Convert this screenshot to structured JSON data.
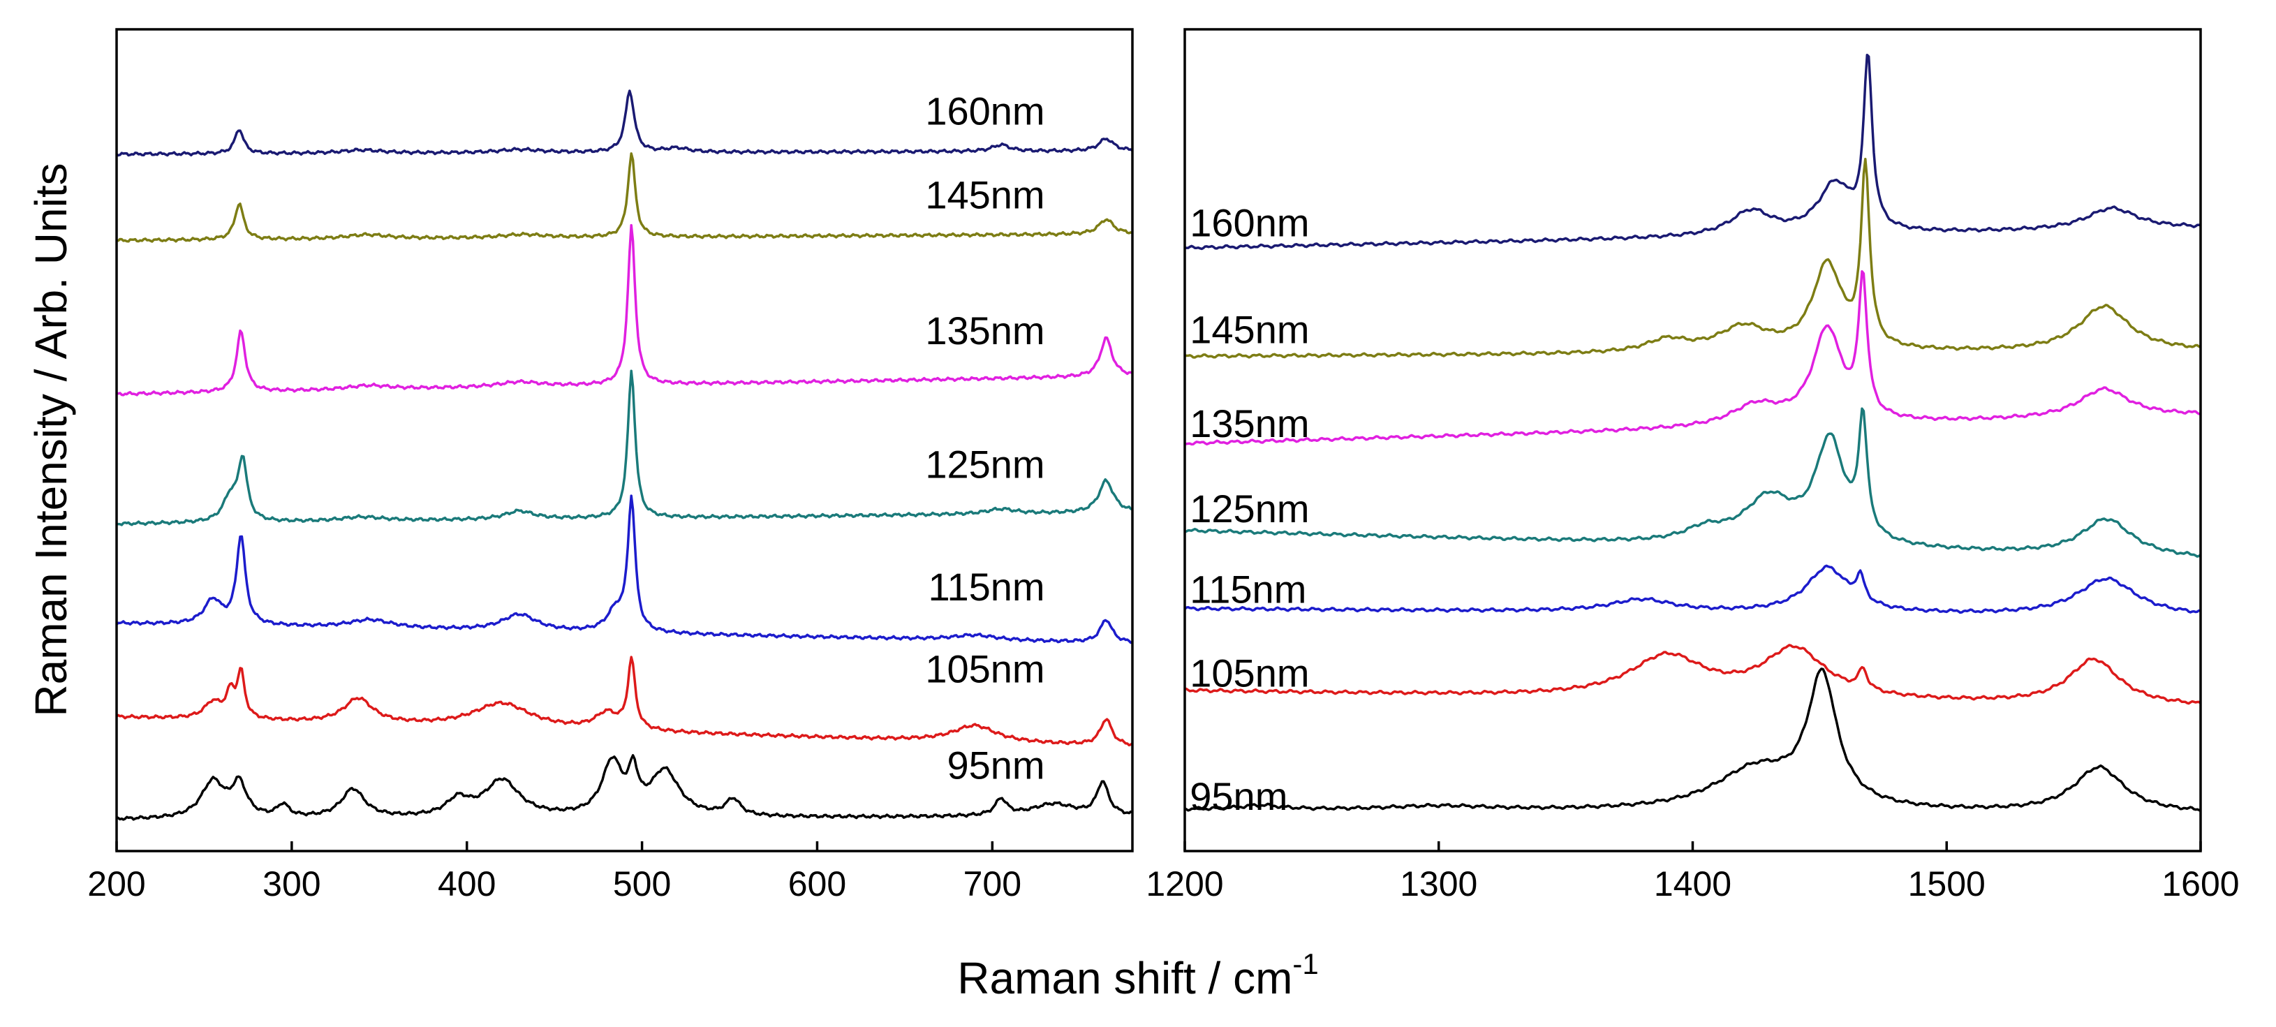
{
  "chart_data": {
    "type": "line",
    "ylabel": "Raman Intensity / Arb. Units",
    "xlabel_main": "Raman shift / cm",
    "xlabel_sup": "-1",
    "panels": [
      {
        "name": "left",
        "xlim": [
          200,
          780
        ],
        "ylim": [
          0,
          100
        ],
        "ticks": [
          200,
          300,
          400,
          500,
          600,
          700
        ],
        "tick_labels": [
          "200",
          "300",
          "400",
          "500",
          "600",
          "700"
        ],
        "label_x": 790
      },
      {
        "name": "right",
        "xlim": [
          1200,
          1600
        ],
        "ylim": [
          0,
          100
        ],
        "ticks": [
          1200,
          1300,
          1400,
          1500,
          1600
        ],
        "tick_labels": [
          "1200",
          "1300",
          "1400",
          "1500",
          "1600"
        ],
        "label_x": 1200
      }
    ],
    "series": [
      {
        "name": "160nm",
        "color": "#1a1a72",
        "left": {
          "baseline_start": 84.8,
          "baseline_end": 85.2,
          "label_y": 88.4,
          "label_x": 730,
          "peaks": [
            [
              270,
              3.0,
              3
            ],
            [
              340,
              0.4,
              15
            ],
            [
              430,
              0.4,
              15
            ],
            [
              493,
              7.5,
              3
            ],
            [
              520,
              0.5,
              8
            ],
            [
              705,
              0.8,
              6
            ],
            [
              765,
              1.5,
              5
            ]
          ]
        },
        "right": {
          "baseline_start": 73.4,
          "baseline_end": 75.8,
          "label_y": 74.8,
          "label_x": 1202,
          "peaks": [
            [
              1423,
              3.0,
              10
            ],
            [
              1456,
              6.0,
              8
            ],
            [
              1469,
              20.5,
              2
            ],
            [
              1565,
              2.6,
              12
            ]
          ]
        }
      },
      {
        "name": "145nm",
        "color": "#7d7d14",
        "left": {
          "baseline_start": 74.3,
          "baseline_end": 75.1,
          "label_y": 78.2,
          "label_x": 730,
          "peaks": [
            [
              270,
              4.4,
              3
            ],
            [
              343,
              0.5,
              15
            ],
            [
              432,
              0.4,
              15
            ],
            [
              494,
              10.2,
              2.5
            ],
            [
              765,
              1.8,
              5
            ]
          ]
        },
        "right": {
          "baseline_start": 60.2,
          "baseline_end": 60.8,
          "label_y": 61.8,
          "label_x": 1202,
          "peaks": [
            [
              1390,
              1.5,
              10
            ],
            [
              1420,
              3.0,
              12
            ],
            [
              1453,
              10.5,
              7
            ],
            [
              1468,
              21.5,
              2
            ],
            [
              1562,
              5.5,
              12
            ]
          ]
        }
      },
      {
        "name": "135nm",
        "color": "#e020e0",
        "left": {
          "baseline_start": 55.6,
          "baseline_end": 57.8,
          "label_y": 61.7,
          "label_x": 730,
          "peaks": [
            [
              271,
              7.4,
              3
            ],
            [
              344,
              0.5,
              15
            ],
            [
              430,
              0.6,
              15
            ],
            [
              494,
              19.3,
              2.5
            ],
            [
              765,
              4.7,
              4
            ]
          ]
        },
        "right": {
          "baseline_start": 49.6,
          "baseline_end": 53.0,
          "label_y": 50.4,
          "label_x": 1202,
          "peaks": [
            [
              1425,
              2.5,
              12
            ],
            [
              1453,
              11.5,
              7
            ],
            [
              1467,
              16.5,
              2
            ],
            [
              1562,
              3.5,
              12
            ]
          ]
        }
      },
      {
        "name": "125nm",
        "color": "#1a7a7a",
        "left": {
          "baseline_start": 39.8,
          "baseline_end": 41.2,
          "label_y": 45.4,
          "label_x": 730,
          "peaks": [
            [
              265,
              3.0,
              5
            ],
            [
              272,
              7.3,
              3
            ],
            [
              340,
              0.5,
              15
            ],
            [
              430,
              1.0,
              10
            ],
            [
              494,
              17.9,
              2.5
            ],
            [
              705,
              0.6,
              10
            ],
            [
              765,
              3.9,
              5
            ]
          ]
        },
        "right": {
          "baseline_start": 39.0,
          "baseline_end": 35.5,
          "label_y": 40.0,
          "label_x": 1202,
          "peaks": [
            [
              1405,
              1.5,
              10
            ],
            [
              1430,
              5.5,
              12
            ],
            [
              1454,
              12.5,
              7
            ],
            [
              1467,
              14.0,
              2
            ],
            [
              1563,
              4.5,
              12
            ]
          ]
        }
      },
      {
        "name": "115nm",
        "color": "#1c1ccc",
        "left": {
          "baseline_start": 27.7,
          "baseline_end": 25.3,
          "label_y": 30.5,
          "label_x": 730,
          "peaks": [
            [
              255,
              3.0,
              6
            ],
            [
              271,
              10.8,
              3
            ],
            [
              345,
              1.0,
              15
            ],
            [
              430,
              2.0,
              12
            ],
            [
              485,
              2.5,
              6
            ],
            [
              494,
              16.0,
              2.5
            ],
            [
              690,
              0.6,
              15
            ],
            [
              765,
              2.8,
              4
            ]
          ]
        },
        "right": {
          "baseline_start": 29.5,
          "baseline_end": 28.5,
          "label_y": 30.2,
          "label_x": 1202,
          "peaks": [
            [
              1380,
              1.5,
              15
            ],
            [
              1453,
              5.5,
              10
            ],
            [
              1466,
              3.0,
              2
            ],
            [
              1563,
              4.5,
              14
            ]
          ]
        }
      },
      {
        "name": "105nm",
        "color": "#dd1a1a",
        "left": {
          "baseline_start": 16.3,
          "baseline_end": 12.7,
          "label_y": 20.5,
          "label_x": 730,
          "peaks": [
            [
              255,
              2.0,
              6
            ],
            [
              265,
              3.0,
              3
            ],
            [
              271,
              5.5,
              2.5
            ],
            [
              338,
              3.0,
              10
            ],
            [
              420,
              3.0,
              20
            ],
            [
              480,
              2.0,
              8
            ],
            [
              494,
              8.4,
              2.5
            ],
            [
              690,
              2.0,
              15
            ],
            [
              765,
              3.2,
              4
            ]
          ]
        },
        "right": {
          "baseline_start": 19.5,
          "baseline_end": 17.5,
          "label_y": 20.0,
          "label_x": 1202,
          "peaks": [
            [
              1390,
              5.0,
              18
            ],
            [
              1440,
              6.0,
              15
            ],
            [
              1467,
              2.5,
              2
            ],
            [
              1558,
              5.5,
              12
            ]
          ]
        }
      },
      {
        "name": "95nm",
        "color": "#000000",
        "left": {
          "baseline_start": 3.8,
          "baseline_end": 4.2,
          "label_y": 8.8,
          "label_x": 730,
          "peaks": [
            [
              255,
              4.5,
              8
            ],
            [
              270,
              4.0,
              5
            ],
            [
              295,
              1.5,
              4
            ],
            [
              335,
              3.5,
              8
            ],
            [
              395,
              2.0,
              8
            ],
            [
              420,
              4.5,
              12
            ],
            [
              483,
              6.5,
              7
            ],
            [
              495,
              4.5,
              3
            ],
            [
              513,
              5.5,
              10
            ],
            [
              552,
              2.0,
              5
            ],
            [
              705,
              2.0,
              4
            ],
            [
              735,
              1.5,
              15
            ],
            [
              763,
              4.0,
              4
            ]
          ]
        },
        "right": {
          "baseline_start": 5.0,
          "baseline_end": 4.5,
          "label_y": 5.0,
          "label_x": 1202,
          "peaks": [
            [
              1230,
              0.5,
              10
            ],
            [
              1300,
              0.5,
              25
            ],
            [
              1425,
              5.0,
              20
            ],
            [
              1451,
              15.5,
              7
            ],
            [
              1560,
              5.5,
              12
            ]
          ]
        }
      }
    ]
  }
}
